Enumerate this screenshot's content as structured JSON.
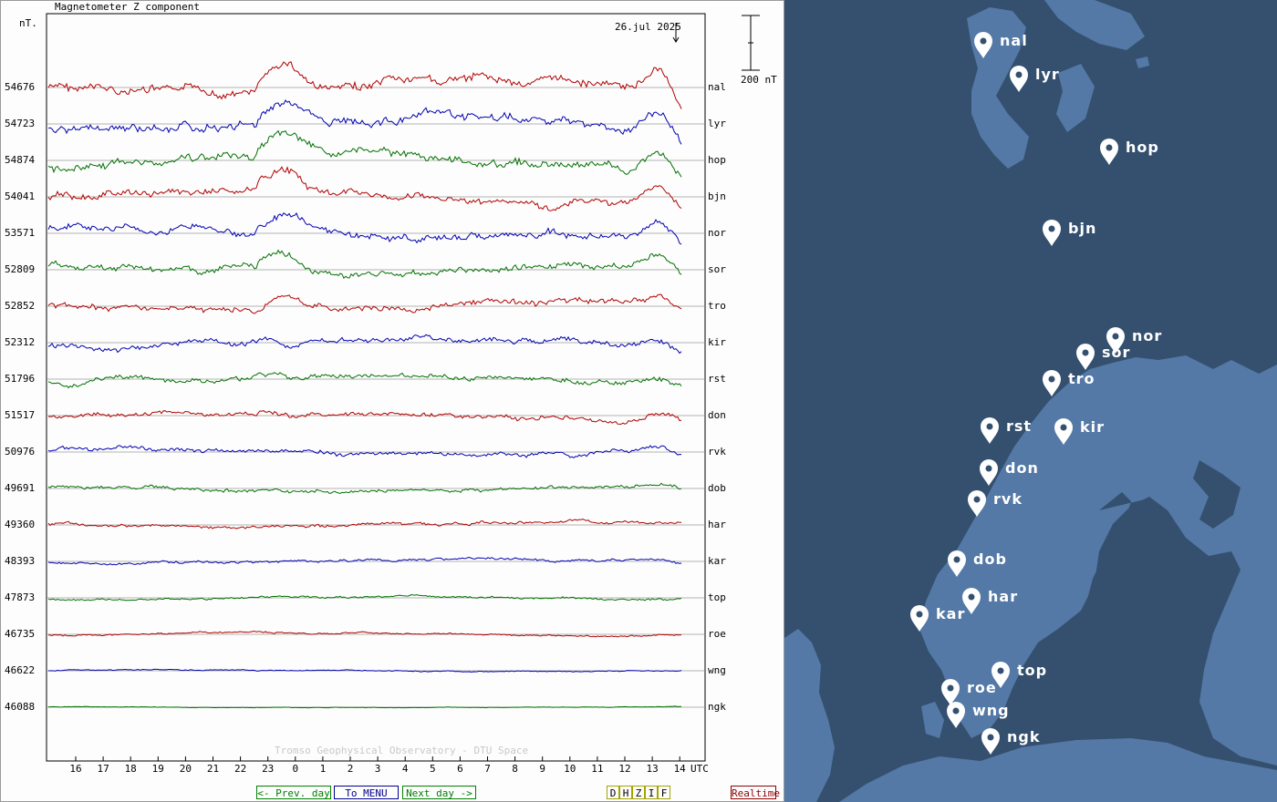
{
  "plot": {
    "title": "Magnetometer Z component",
    "unit": "nT.",
    "date": "26.jul 2025",
    "scale_label": "200 nT",
    "credit": "Tromso Geophysical Observatory - DTU Space",
    "utc_label": "UTC"
  },
  "chart_data": {
    "type": "line",
    "title": "Magnetometer Z component",
    "ylabel": "nT.",
    "xlabel": "UTC",
    "x_ticks": [
      "16",
      "17",
      "18",
      "19",
      "20",
      "21",
      "22",
      "23",
      "0",
      "1",
      "2",
      "3",
      "4",
      "5",
      "6",
      "7",
      "8",
      "9",
      "10",
      "11",
      "12",
      "13",
      "14"
    ],
    "series": [
      {
        "name": "nal",
        "baseline": 54676,
        "color": "#b00000"
      },
      {
        "name": "lyr",
        "baseline": 54723,
        "color": "#0000b0"
      },
      {
        "name": "hop",
        "baseline": 54874,
        "color": "#007000"
      },
      {
        "name": "bjn",
        "baseline": 54041,
        "color": "#b00000"
      },
      {
        "name": "nor",
        "baseline": 53571,
        "color": "#0000b0"
      },
      {
        "name": "sor",
        "baseline": 52809,
        "color": "#007000"
      },
      {
        "name": "tro",
        "baseline": 52852,
        "color": "#b00000"
      },
      {
        "name": "kir",
        "baseline": 52312,
        "color": "#0000b0"
      },
      {
        "name": "rst",
        "baseline": 51796,
        "color": "#007000"
      },
      {
        "name": "don",
        "baseline": 51517,
        "color": "#b00000"
      },
      {
        "name": "rvk",
        "baseline": 50976,
        "color": "#0000b0"
      },
      {
        "name": "dob",
        "baseline": 49691,
        "color": "#007000"
      },
      {
        "name": "har",
        "baseline": 49360,
        "color": "#b00000"
      },
      {
        "name": "kar",
        "baseline": 48393,
        "color": "#0000b0"
      },
      {
        "name": "top",
        "baseline": 47873,
        "color": "#007000"
      },
      {
        "name": "roe",
        "baseline": 46735,
        "color": "#b00000"
      },
      {
        "name": "wng",
        "baseline": 46622,
        "color": "#0000b0"
      },
      {
        "name": "ngk",
        "baseline": 46088,
        "color": "#007000"
      }
    ]
  },
  "nav": {
    "prev_label": "<- Prev. day",
    "menu_label": "To MENU",
    "next_label": "Next day ->",
    "components": [
      "D",
      "H",
      "Z",
      "I",
      "F"
    ],
    "realtime_label": "Realtime"
  },
  "map": {
    "stations": [
      "nal",
      "lyr",
      "hop",
      "bjn",
      "nor",
      "sor",
      "tro",
      "rst",
      "kir",
      "don",
      "rvk",
      "dob",
      "har",
      "kar",
      "top",
      "roe",
      "wng",
      "ngk"
    ]
  },
  "colors": {
    "red": "#b00000",
    "blue": "#0000b0",
    "green": "#007000",
    "sea": "#34506e",
    "land": "#5479a6",
    "prev_btn": "#008000",
    "menu_btn": "#000090",
    "realtime_btn": "#900000"
  }
}
